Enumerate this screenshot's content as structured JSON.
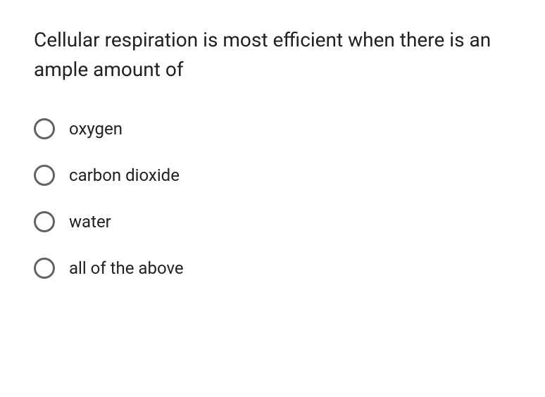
{
  "question": {
    "text": "Cellular respiration is most efficient when there is an ample amount of"
  },
  "options": [
    {
      "label": "oxygen"
    },
    {
      "label": "carbon dioxide"
    },
    {
      "label": "water"
    },
    {
      "label": "all of the above"
    }
  ],
  "styling": {
    "radio_border_color": "#5f6368",
    "text_color": "#202124",
    "background_color": "#ffffff",
    "question_fontsize": 28,
    "option_fontsize": 24
  }
}
